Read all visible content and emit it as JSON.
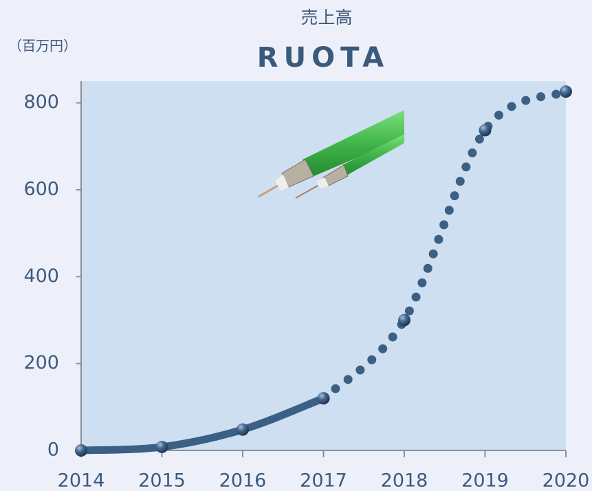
{
  "chart_data": {
    "type": "line",
    "title": "売上高",
    "subtitle": "RUOTA",
    "y_unit_label": "（百万円）",
    "x": [
      2014,
      2015,
      2016,
      2017,
      2018,
      2019,
      2020
    ],
    "series": [
      {
        "color": "#3c5f84",
        "style": "solid",
        "x": [
          2014,
          2015,
          2016,
          2017
        ],
        "values": [
          0,
          8,
          48,
          120
        ]
      },
      {
        "color": "#3c5f84",
        "style": "dotted",
        "x": [
          2017,
          2018,
          2019,
          2020
        ],
        "values": [
          120,
          300,
          737,
          826
        ]
      }
    ],
    "xlim": [
      2014,
      2020
    ],
    "xticks": [
      2014,
      2015,
      2016,
      2017,
      2018,
      2019,
      2020
    ],
    "ylim": [
      0,
      850
    ],
    "yticks": [
      0,
      200,
      400,
      600,
      800
    ],
    "grid": false
  }
}
